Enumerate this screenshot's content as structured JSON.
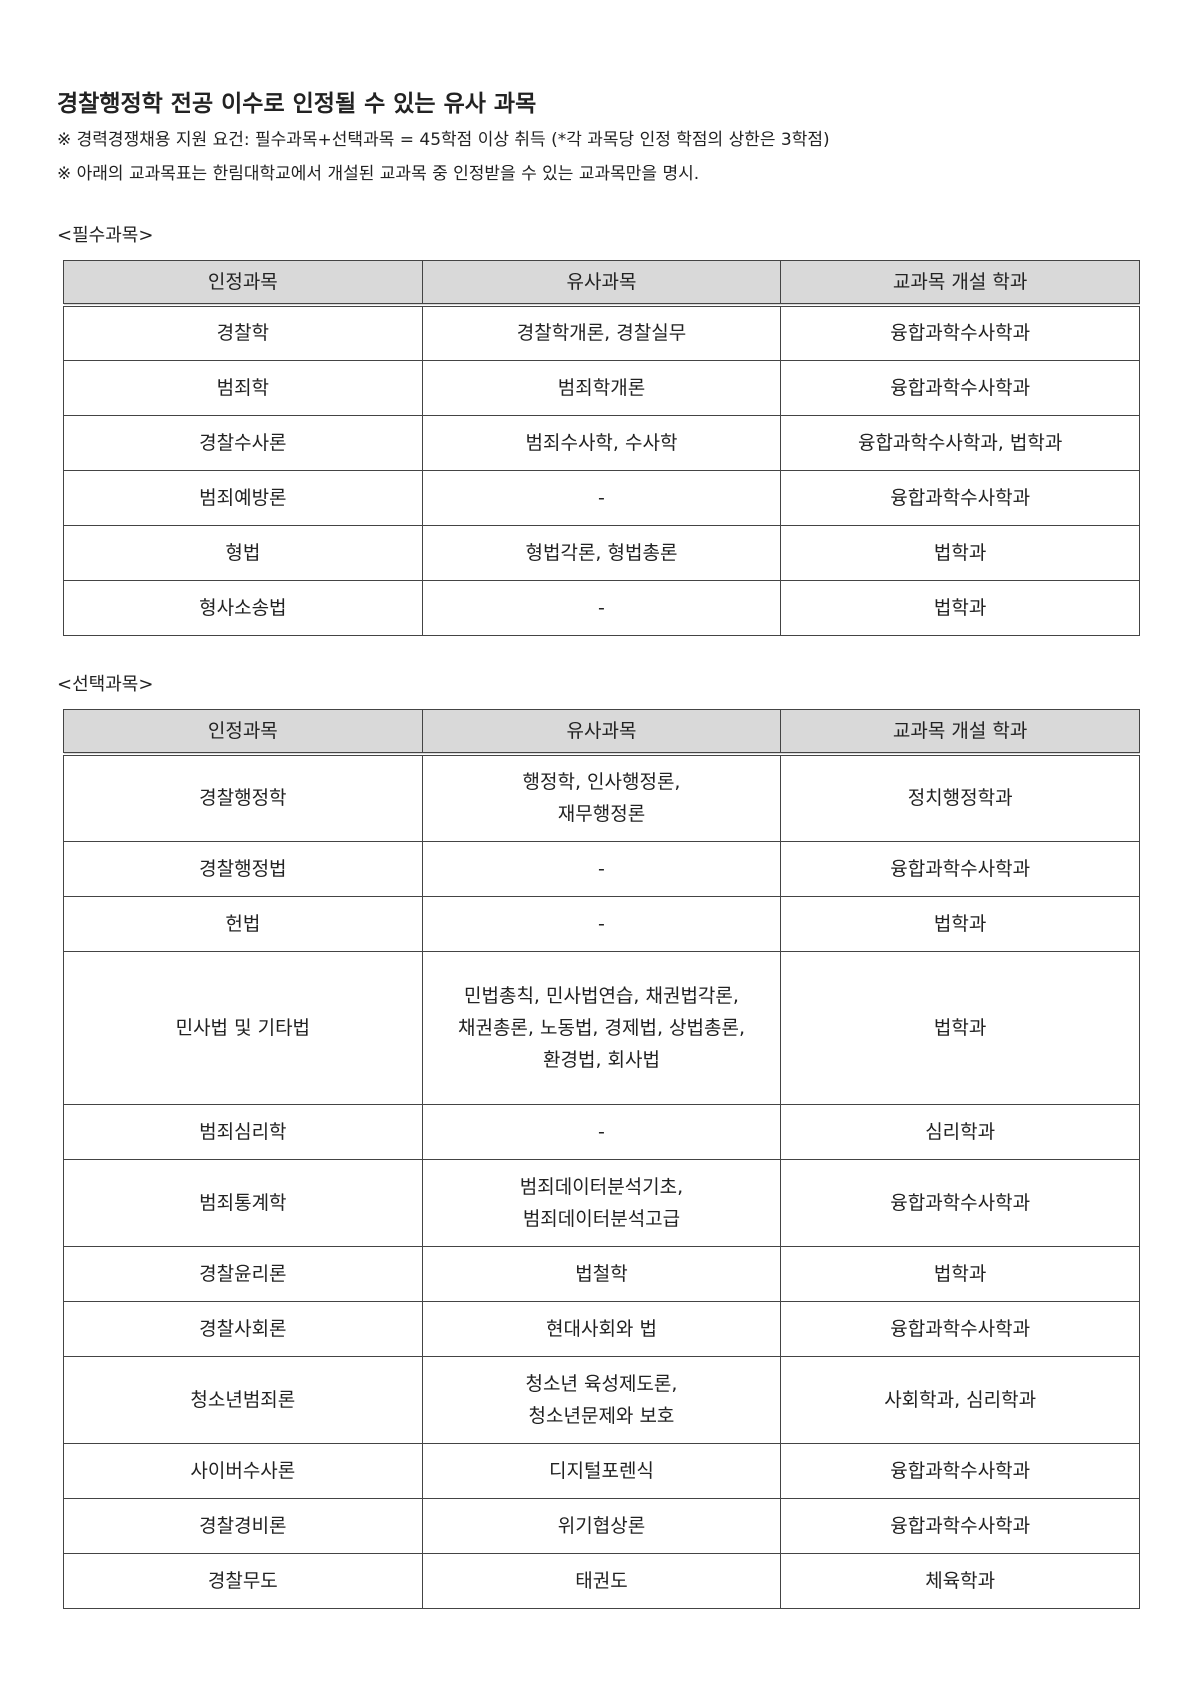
{
  "header": {
    "title": "경찰행정학 전공 이수로 인정될 수 있는 유사 과목",
    "notes": [
      "※ 경력경쟁채용 지원 요건: 필수과목+선택과목 = 45학점 이상 취득 (*각 과목당 인정 학점의 상한은 3학점)",
      "※ 아래의 교과목표는 한림대학교에서 개설된 교과목 중 인정받을 수 있는 교과목만을 명시."
    ]
  },
  "sections": [
    {
      "label": "<필수과목>",
      "columns": [
        "인정과목",
        "유사과목",
        "교과목 개설 학과"
      ],
      "rows": [
        [
          "경찰학",
          "경찰학개론, 경찰실무",
          "융합과학수사학과"
        ],
        [
          "범죄학",
          "범죄학개론",
          "융합과학수사학과"
        ],
        [
          "경찰수사론",
          "범죄수사학, 수사학",
          "융합과학수사학과, 법학과"
        ],
        [
          "범죄예방론",
          "-",
          "융합과학수사학과"
        ],
        [
          "형법",
          "형법각론, 형법총론",
          "법학과"
        ],
        [
          "형사소송법",
          "-",
          "법학과"
        ]
      ]
    },
    {
      "label": "<선택과목>",
      "columns": [
        "인정과목",
        "유사과목",
        "교과목 개설 학과"
      ],
      "rows": [
        [
          "경찰행정학",
          [
            "행정학, 인사행정론,",
            "재무행정론"
          ],
          "정치행정학과"
        ],
        [
          "경찰행정법",
          "-",
          "융합과학수사학과"
        ],
        [
          "헌법",
          "-",
          "법학과"
        ],
        [
          "민사법 및 기타법",
          [
            "민법총칙, 민사법연습, 채권법각론,",
            "채권총론, 노동법, 경제법, 상법총론,",
            "환경법, 회사법"
          ],
          "법학과"
        ],
        [
          "범죄심리학",
          "-",
          "심리학과"
        ],
        [
          "범죄통계학",
          [
            "범죄데이터분석기초,",
            "범죄데이터분석고급"
          ],
          "융합과학수사학과"
        ],
        [
          "경찰윤리론",
          "법철학",
          "법학과"
        ],
        [
          "경찰사회론",
          "현대사회와 법",
          "융합과학수사학과"
        ],
        [
          "청소년범죄론",
          [
            "청소년 육성제도론,",
            "청소년문제와 보호"
          ],
          "사회학과, 심리학과"
        ],
        [
          "사이버수사론",
          "디지털포렌식",
          "융합과학수사학과"
        ],
        [
          "경찰경비론",
          "위기협상론",
          "융합과학수사학과"
        ],
        [
          "경찰무도",
          "태권도",
          "체육학과"
        ]
      ]
    }
  ]
}
